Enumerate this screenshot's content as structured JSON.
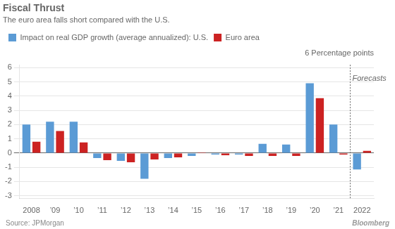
{
  "chart_data": {
    "type": "bar",
    "title": "Fiscal Thrust",
    "subtitle": "The euro area falls short compared with the U.S.",
    "categories": [
      "2008",
      "’09",
      "’10",
      "’11",
      "’12",
      "’13",
      "’14",
      "’15",
      "’16",
      "’17",
      "’18",
      "’19",
      "’20",
      "’21",
      "2022"
    ],
    "series": [
      {
        "name": "Impact on real GDP growth (average annualized): U.S.",
        "color": "#5b9bd5",
        "values": [
          2.0,
          2.2,
          2.2,
          -0.35,
          -0.55,
          -1.8,
          -0.35,
          -0.2,
          -0.1,
          -0.1,
          0.65,
          0.6,
          4.9,
          2.0,
          -1.15
        ]
      },
      {
        "name": "Euro area",
        "color": "#cc2222",
        "values": [
          0.8,
          1.55,
          0.75,
          -0.5,
          -0.65,
          -0.45,
          -0.3,
          0.05,
          -0.15,
          -0.2,
          -0.2,
          -0.2,
          3.85,
          -0.1,
          0.15
        ]
      }
    ],
    "ylabel": "6 Percentage points",
    "ylim": [
      -3.2,
      6.2
    ],
    "yticks": [
      -3,
      -2,
      -1,
      0,
      1,
      2,
      3,
      4,
      5,
      6
    ],
    "grid": true,
    "legend": "top",
    "annotations": [
      {
        "text": "Forecasts",
        "x": "’21"
      },
      {
        "text": "Bloomberg"
      }
    ],
    "source": "Source: JPMorgan"
  }
}
